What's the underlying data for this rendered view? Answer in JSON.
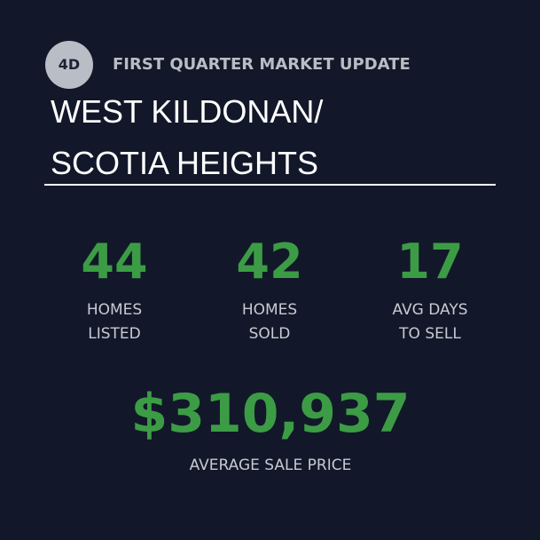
{
  "badge": "4D",
  "header": {
    "kicker": "FIRST QUARTER MARKET UPDATE",
    "title_lines": [
      "WEST KILDONAN/",
      "SCOTIA HEIGHTS"
    ]
  },
  "stats": [
    {
      "value": 44,
      "label_lines": [
        "HOMES",
        "LISTED"
      ]
    },
    {
      "value": 42,
      "label_lines": [
        "HOMES",
        "SOLD"
      ]
    },
    {
      "value": 17,
      "label_lines": [
        "AVG DAYS",
        "TO SELL"
      ]
    }
  ],
  "highlight": {
    "value": "$310,937",
    "label": "AVERAGE SALE PRICE"
  }
}
